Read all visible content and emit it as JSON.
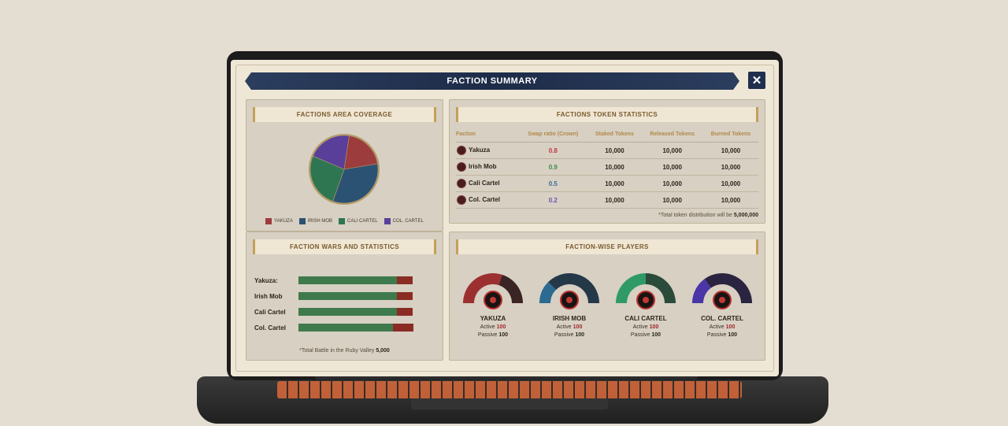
{
  "header": {
    "title": "FACTION SUMMARY",
    "close_label": "✕"
  },
  "coverage": {
    "title": "FACTIONS AREA COVERAGE",
    "slices": [
      {
        "name": "YAKUZA",
        "value": 20,
        "color": "#9c3c3c"
      },
      {
        "name": "IRISH MOB",
        "value": 33,
        "color": "#2c5273"
      },
      {
        "name": "CALI CARTEL",
        "value": 26,
        "color": "#2e7652"
      },
      {
        "name": "COL. CARTEL",
        "value": 21,
        "color": "#5a3f9a"
      }
    ],
    "legend": [
      "YAKUZA",
      "IRISH MOB",
      "CALI CARTEL",
      "COL. CARTEL"
    ]
  },
  "tokens": {
    "title": "FACTIONS TOKEN STATISTICS",
    "headers": [
      "Faction",
      "Swap ratio (Crown)",
      "Staked Tokens",
      "Released Tokens",
      "Burned Tokens"
    ],
    "rows": [
      {
        "faction": "Yakuza",
        "ratio": "0.8",
        "ratio_color": "#c0393f",
        "staked": "10,000",
        "released": "10,000",
        "burned": "10,000"
      },
      {
        "faction": "Irish Mob",
        "ratio": "0.9",
        "ratio_color": "#3d8a52",
        "staked": "10,000",
        "released": "10,000",
        "burned": "10,000"
      },
      {
        "faction": "Cali Cartel",
        "ratio": "0.5",
        "ratio_color": "#3a6d96",
        "staked": "10,000",
        "released": "10,000",
        "burned": "10,000"
      },
      {
        "faction": "Col. Cartel",
        "ratio": "0.2",
        "ratio_color": "#6d53b4",
        "staked": "10,000",
        "released": "10,000",
        "burned": "10,000"
      }
    ],
    "note_prefix": "*Total token distribution will be ",
    "note_value": "5,000,000"
  },
  "wars": {
    "title": "FACTION WARS AND STATISTICS",
    "rows": [
      {
        "label": "Yakuza:",
        "wins": 88,
        "losses": 12
      },
      {
        "label": "Irish Mob",
        "wins": 88,
        "losses": 12
      },
      {
        "label": "Cali Cartel",
        "wins": 88,
        "losses": 12
      },
      {
        "label": "Col. Cartel",
        "wins": 84,
        "losses": 16
      }
    ],
    "note_prefix": "*Total Battle in the Ruby Valley ",
    "note_value": "5,000"
  },
  "players": {
    "title": "FACTION-WISE PLAYERS",
    "active_label": "Active",
    "passive_label": "Passive",
    "items": [
      {
        "name": "YAKUZA",
        "active": "100",
        "passive": "100",
        "color": "#9c3030",
        "dark": "#3b2424",
        "share": 0.6
      },
      {
        "name": "IRISH MOB",
        "active": "100",
        "passive": "100",
        "color": "#2b6a91",
        "dark": "#243848",
        "share": 0.25
      },
      {
        "name": "CALI CARTEL",
        "active": "100",
        "passive": "100",
        "color": "#2f9a66",
        "dark": "#2a4a3a",
        "share": 0.5
      },
      {
        "name": "COL. CARTEL",
        "active": "100",
        "passive": "100",
        "color": "#4a36a6",
        "dark": "#2a2440",
        "share": 0.3
      }
    ]
  }
}
